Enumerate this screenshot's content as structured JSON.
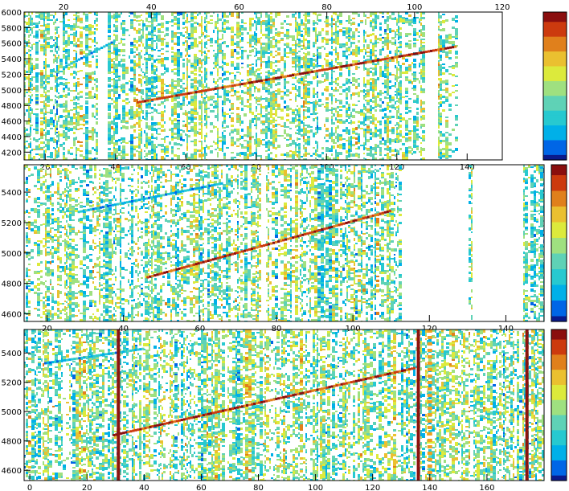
{
  "chart_data": [
    {
      "type": "heatmap",
      "title": "",
      "xlabel": "",
      "ylabel": "",
      "x_bottom_range": [
        14,
        150
      ],
      "x_top_range": [
        11,
        120
      ],
      "ylim": [
        4100,
        6000
      ],
      "x_bottom_ticks": [
        "20",
        "40",
        "60",
        "80",
        "100",
        "120",
        "140"
      ],
      "x_top_ticks": [
        "20",
        "40",
        "60",
        "80",
        "100",
        "120"
      ],
      "y_ticks": [
        "4200",
        "4400",
        "4600",
        "4800",
        "5000",
        "5200",
        "5400",
        "5600",
        "5800",
        "6000"
      ],
      "y_tick_values": [
        4200,
        4400,
        4600,
        4800,
        5000,
        5200,
        5400,
        5600,
        5800,
        6000
      ],
      "z_scale": "rainbow (blue low to red high), no printed values",
      "bright_tracks": [
        {
          "from": [
            46,
            4840
          ],
          "to": [
            137,
            5560
          ]
        },
        {
          "from": [
            25,
            5290
          ],
          "to": [
            40,
            5640
          ]
        }
      ],
      "empty_columns": [
        [
          35,
          37.5
        ],
        [
          128,
          131
        ],
        [
          137,
          150
        ]
      ],
      "seed": 7
    },
    {
      "type": "heatmap",
      "title": "",
      "xlabel": "",
      "ylabel": "",
      "xlim": [
        14,
        150
      ],
      "ylim": [
        4550,
        5580
      ],
      "x_ticks": [
        "20",
        "40",
        "60",
        "80",
        "100",
        "120",
        "140"
      ],
      "x_tick_values": [
        20,
        40,
        60,
        80,
        100,
        120,
        140
      ],
      "y_ticks": [
        "4600",
        "4800",
        "5000",
        "5200",
        "5400"
      ],
      "y_tick_values": [
        4600,
        4800,
        5000,
        5200,
        5400
      ],
      "z_scale": "rainbow (blue low to red high), no printed values",
      "bright_tracks": [
        {
          "from": [
            46,
            4840
          ],
          "to": [
            110,
            5280
          ]
        },
        {
          "from": [
            28,
            5270
          ],
          "to": [
            66,
            5460
          ]
        }
      ],
      "empty_columns": [
        [
          75.5,
          77
        ],
        [
          112,
          130
        ],
        [
          131,
          144
        ]
      ],
      "seed": 19
    },
    {
      "type": "heatmap",
      "title": "",
      "xlabel": "",
      "ylabel": "",
      "xlim": [
        -2,
        180
      ],
      "ylim": [
        4530,
        5560
      ],
      "x_ticks": [
        "0",
        "20",
        "40",
        "60",
        "80",
        "100",
        "120",
        "140",
        "160"
      ],
      "x_tick_values": [
        0,
        20,
        40,
        60,
        80,
        100,
        120,
        140,
        160
      ],
      "y_ticks": [
        "4600",
        "4800",
        "5000",
        "5200",
        "5400"
      ],
      "y_tick_values": [
        4600,
        4800,
        5000,
        5200,
        5400
      ],
      "z_scale": "rainbow (blue low to red high), no printed values",
      "bright_tracks": [
        {
          "from": [
            29,
            4840
          ],
          "to": [
            135,
            5300
          ]
        },
        {
          "from": [
            5,
            5330
          ],
          "to": [
            40,
            5430
          ]
        }
      ],
      "hot_columns": [
        31,
        136,
        174
      ],
      "dotted_columns": [
        140
      ],
      "seed": 31
    }
  ],
  "colors": {
    "palette": [
      "#0a1a8c",
      "#0066e6",
      "#00b0e8",
      "#27c9d0",
      "#5fd2b6",
      "#9fe080",
      "#dcea3c",
      "#eac030",
      "#e0801c",
      "#cc3a0e",
      "#8a0e0e"
    ],
    "hot_column": "#8c140e",
    "dotted_column": "#f0a020",
    "frame": "#000000"
  }
}
